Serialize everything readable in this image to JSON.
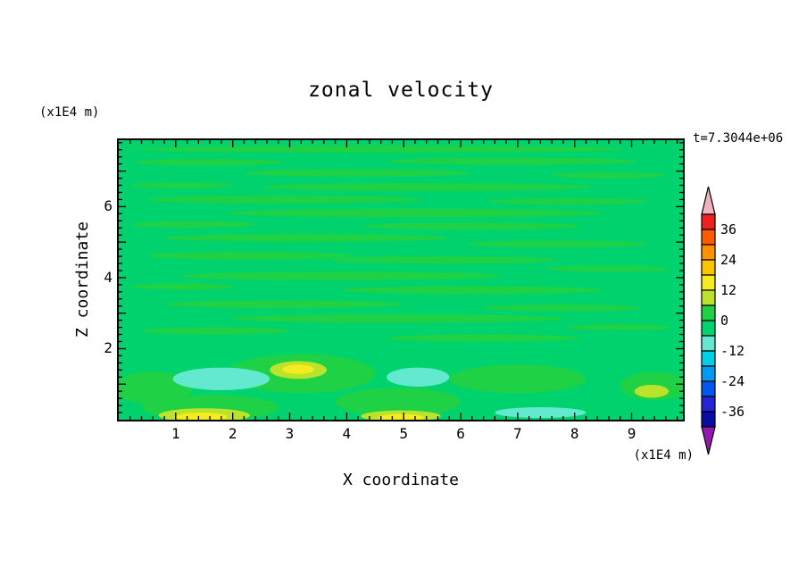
{
  "title": "zonal velocity",
  "timestamp": "t=7.3044e+06",
  "x_axis": {
    "label": "X coordinate",
    "units": "(x1E4 m)",
    "ticks": [
      "1",
      "2",
      "3",
      "4",
      "5",
      "6",
      "7",
      "8",
      "9"
    ]
  },
  "y_axis": {
    "label": "Z coordinate",
    "units": "(x1E4 m)",
    "ticks": [
      "2",
      "4",
      "6"
    ]
  },
  "colorbar": {
    "labels": [
      "36",
      "24",
      "12",
      "0",
      "-12",
      "-24",
      "-36"
    ],
    "top_arrow": "#f0b2bc",
    "bottom_arrow": "#9417ae",
    "segments": [
      "#ee2020",
      "#ff5a00",
      "#ff9000",
      "#ffc400",
      "#f4ec1f",
      "#bce32c",
      "#1fd145",
      "#00d26e",
      "#62e9cf",
      "#00cfe8",
      "#009af5",
      "#0056ee",
      "#2424d6",
      "#0b0ba6"
    ]
  },
  "chart_data": {
    "type": "heatmap",
    "subtype": "filled-contour",
    "title": "zonal velocity",
    "xlabel": "X coordinate",
    "ylabel": "Z coordinate",
    "axis_units": "x1E4 m",
    "time_label": "t=7.3044e+06",
    "xlim": [
      0,
      9.9
    ],
    "ylim": [
      0,
      7.87
    ],
    "x_ticks": [
      1,
      2,
      3,
      4,
      5,
      6,
      7,
      8,
      9
    ],
    "y_ticks": [
      2,
      4,
      6
    ],
    "minor_tick": 0.2,
    "major_tick": 1,
    "contour_interval": 6,
    "levels": [
      -42,
      -36,
      -30,
      -24,
      -18,
      -12,
      -6,
      0,
      6,
      12,
      18,
      24,
      30,
      36,
      42
    ],
    "colorbar_labels": [
      36,
      24,
      12,
      0,
      -12,
      -24,
      -36
    ],
    "base_band": "m6_0",
    "band_meaning": {
      "p12_18": "12 to 18",
      "p6_12": "6 to 12",
      "p0_6": "0 to 6",
      "m6_0": "-6 to 0",
      "m12_m6": "-12 to -6"
    },
    "band_colors": {
      "p12_18": "#f4ec1f",
      "p6_12": "#bce32c",
      "p0_6": "#1fd145",
      "m6_0": "#00d26e",
      "m12_m6": "#62e9cf"
    },
    "features": [
      {
        "x": 4.6,
        "z": 7.62,
        "rx": 4.3,
        "ry": 0.1,
        "band": "p0_6"
      },
      {
        "x": 1.6,
        "z": 7.25,
        "rx": 1.3,
        "ry": 0.09,
        "band": "p0_6"
      },
      {
        "x": 6.9,
        "z": 7.28,
        "rx": 2.2,
        "ry": 0.1,
        "band": "p0_6"
      },
      {
        "x": 4.2,
        "z": 6.95,
        "rx": 2.0,
        "ry": 0.1,
        "band": "p0_6"
      },
      {
        "x": 8.6,
        "z": 6.88,
        "rx": 1.0,
        "ry": 0.08,
        "band": "p0_6"
      },
      {
        "x": 1.1,
        "z": 6.6,
        "rx": 0.9,
        "ry": 0.08,
        "band": "p0_6"
      },
      {
        "x": 5.4,
        "z": 6.55,
        "rx": 2.9,
        "ry": 0.11,
        "band": "p0_6"
      },
      {
        "x": 2.9,
        "z": 6.2,
        "rx": 2.4,
        "ry": 0.11,
        "band": "p0_6"
      },
      {
        "x": 7.9,
        "z": 6.15,
        "rx": 1.4,
        "ry": 0.09,
        "band": "p0_6"
      },
      {
        "x": 5.2,
        "z": 5.82,
        "rx": 3.3,
        "ry": 0.12,
        "band": "p0_6"
      },
      {
        "x": 1.3,
        "z": 5.5,
        "rx": 1.1,
        "ry": 0.09,
        "band": "p0_6"
      },
      {
        "x": 6.2,
        "z": 5.45,
        "rx": 1.9,
        "ry": 0.1,
        "band": "p0_6"
      },
      {
        "x": 3.3,
        "z": 5.12,
        "rx": 2.5,
        "ry": 0.11,
        "band": "p0_6"
      },
      {
        "x": 7.7,
        "z": 4.95,
        "rx": 1.6,
        "ry": 0.09,
        "band": "p0_6"
      },
      {
        "x": 2.3,
        "z": 4.62,
        "rx": 1.8,
        "ry": 0.11,
        "band": "p0_6"
      },
      {
        "x": 5.7,
        "z": 4.5,
        "rx": 2.0,
        "ry": 0.1,
        "band": "p0_6"
      },
      {
        "x": 8.6,
        "z": 4.25,
        "rx": 1.1,
        "ry": 0.08,
        "band": "p0_6"
      },
      {
        "x": 3.9,
        "z": 4.05,
        "rx": 2.8,
        "ry": 0.12,
        "band": "p0_6"
      },
      {
        "x": 1.1,
        "z": 3.75,
        "rx": 0.9,
        "ry": 0.09,
        "band": "p0_6"
      },
      {
        "x": 6.2,
        "z": 3.65,
        "rx": 2.3,
        "ry": 0.11,
        "band": "p0_6"
      },
      {
        "x": 2.9,
        "z": 3.25,
        "rx": 2.1,
        "ry": 0.11,
        "band": "p0_6"
      },
      {
        "x": 7.8,
        "z": 3.15,
        "rx": 1.4,
        "ry": 0.09,
        "band": "p0_6"
      },
      {
        "x": 4.9,
        "z": 2.85,
        "rx": 2.9,
        "ry": 0.12,
        "band": "p0_6"
      },
      {
        "x": 1.7,
        "z": 2.5,
        "rx": 1.3,
        "ry": 0.1,
        "band": "p0_6"
      },
      {
        "x": 8.8,
        "z": 2.6,
        "rx": 0.9,
        "ry": 0.08,
        "band": "p0_6"
      },
      {
        "x": 6.4,
        "z": 2.3,
        "rx": 1.7,
        "ry": 0.1,
        "band": "p0_6"
      },
      {
        "x": 3.2,
        "z": 1.3,
        "rx": 1.3,
        "ry": 0.55,
        "band": "p0_6"
      },
      {
        "x": 7.0,
        "z": 1.15,
        "rx": 1.2,
        "ry": 0.4,
        "band": "p0_6"
      },
      {
        "x": 0.6,
        "z": 0.9,
        "rx": 0.7,
        "ry": 0.45,
        "band": "p0_6"
      },
      {
        "x": 9.4,
        "z": 0.95,
        "rx": 0.6,
        "ry": 0.4,
        "band": "p0_6"
      },
      {
        "x": 4.9,
        "z": 0.5,
        "rx": 1.1,
        "ry": 0.4,
        "band": "p0_6"
      },
      {
        "x": 1.6,
        "z": 0.35,
        "rx": 1.2,
        "ry": 0.35,
        "band": "p0_6"
      },
      {
        "x": 1.8,
        "z": 1.15,
        "rx": 0.85,
        "ry": 0.32,
        "band": "m12_m6"
      },
      {
        "x": 5.25,
        "z": 1.2,
        "rx": 0.55,
        "ry": 0.27,
        "band": "m12_m6"
      },
      {
        "x": 7.4,
        "z": 0.2,
        "rx": 0.8,
        "ry": 0.15,
        "band": "m12_m6"
      },
      {
        "x": 3.15,
        "z": 1.4,
        "rx": 0.5,
        "ry": 0.25,
        "band": "p6_12"
      },
      {
        "x": 1.5,
        "z": 0.12,
        "rx": 0.8,
        "ry": 0.2,
        "band": "p6_12"
      },
      {
        "x": 4.95,
        "z": 0.1,
        "rx": 0.7,
        "ry": 0.16,
        "band": "p6_12"
      },
      {
        "x": 9.35,
        "z": 0.8,
        "rx": 0.3,
        "ry": 0.18,
        "band": "p6_12"
      },
      {
        "x": 3.15,
        "z": 1.42,
        "rx": 0.28,
        "ry": 0.13,
        "band": "p12_18"
      },
      {
        "x": 1.45,
        "z": 0.08,
        "rx": 0.45,
        "ry": 0.12,
        "band": "p12_18"
      },
      {
        "x": 4.95,
        "z": 0.06,
        "rx": 0.4,
        "ry": 0.1,
        "band": "p12_18"
      }
    ]
  }
}
